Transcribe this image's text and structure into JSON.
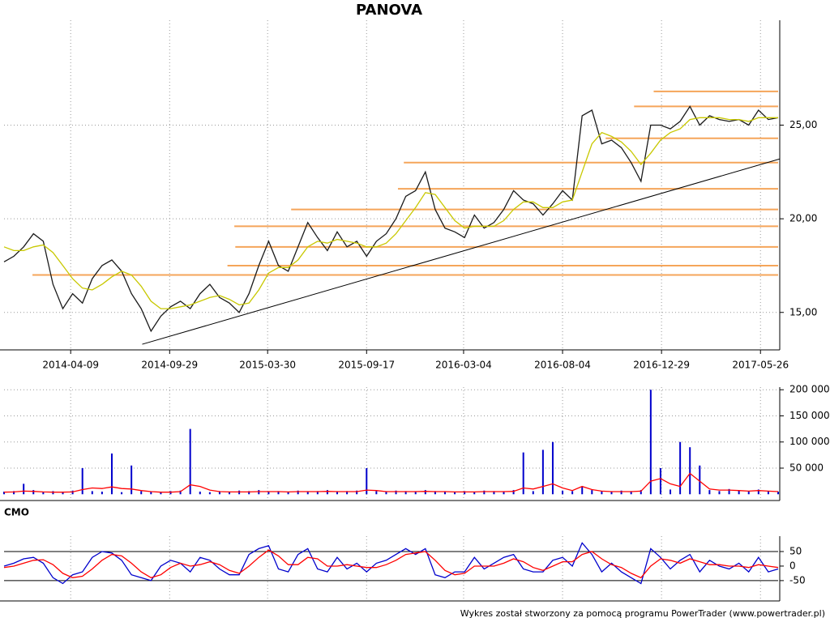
{
  "title": "PANOVA",
  "footer": "Wykres został stworzony za pomocą programu PowerTrader (www.powertrader.pl)",
  "chart_data": [
    {
      "type": "line",
      "xlim": [
        0,
        79
      ],
      "xticks": [
        {
          "value": 6.8,
          "label": "2014-04-09"
        },
        {
          "value": 16.9,
          "label": "2014-09-29"
        },
        {
          "value": 26.9,
          "label": "2015-03-30"
        },
        {
          "value": 37,
          "label": "2015-09-17"
        },
        {
          "value": 46.9,
          "label": "2016-03-04"
        },
        {
          "value": 57,
          "label": "2016-08-04"
        },
        {
          "value": 67.1,
          "label": "2016-12-29"
        },
        {
          "value": 77.2,
          "label": "2017-05-26"
        }
      ],
      "ylim": [
        13,
        30.6
      ],
      "yticks": [
        {
          "value": 15,
          "label": "15,00"
        },
        {
          "value": 20,
          "label": "20,00"
        },
        {
          "value": 25,
          "label": "25,00"
        }
      ],
      "grid": true,
      "series": [
        {
          "color": "#1a1a1a",
          "values": [
            17.7,
            18.0,
            18.5,
            19.2,
            18.8,
            16.5,
            15.2,
            16.0,
            15.5,
            16.8,
            17.5,
            17.8,
            17.2,
            16.0,
            15.2,
            14.0,
            14.8,
            15.3,
            15.6,
            15.2,
            16.0,
            16.5,
            15.8,
            15.5,
            15.0,
            16.0,
            17.5,
            18.8,
            17.5,
            17.2,
            18.5,
            19.8,
            19.0,
            18.3,
            19.3,
            18.5,
            18.8,
            18.0,
            18.8,
            19.2,
            20.0,
            21.2,
            21.5,
            22.5,
            20.5,
            19.5,
            19.3,
            19.0,
            20.2,
            19.5,
            19.8,
            20.5,
            21.5,
            21.0,
            20.8,
            20.2,
            20.8,
            21.5,
            21.0,
            25.5,
            25.8,
            24.0,
            24.2,
            23.8,
            23.0,
            22.0,
            25.0,
            25.0,
            24.8,
            25.2,
            26.0,
            25.0,
            25.5,
            25.3,
            25.2,
            25.3,
            25.0,
            25.8,
            25.3,
            25.4
          ]
        },
        {
          "color": "#c8c800",
          "values": [
            18.5,
            18.3,
            18.3,
            18.5,
            18.6,
            18.2,
            17.5,
            16.8,
            16.3,
            16.2,
            16.5,
            16.9,
            17.2,
            17.0,
            16.4,
            15.6,
            15.2,
            15.2,
            15.3,
            15.4,
            15.6,
            15.8,
            15.9,
            15.7,
            15.4,
            15.5,
            16.2,
            17.1,
            17.4,
            17.4,
            17.8,
            18.5,
            18.8,
            18.7,
            18.9,
            18.8,
            18.7,
            18.5,
            18.5,
            18.7,
            19.2,
            19.9,
            20.6,
            21.4,
            21.3,
            20.6,
            19.9,
            19.5,
            19.6,
            19.6,
            19.6,
            19.9,
            20.5,
            20.9,
            20.9,
            20.6,
            20.6,
            20.9,
            21.0,
            22.5,
            24.0,
            24.6,
            24.4,
            24.1,
            23.6,
            22.9,
            23.5,
            24.2,
            24.6,
            24.8,
            25.3,
            25.4,
            25.4,
            25.4,
            25.3,
            25.3,
            25.2,
            25.4,
            25.4,
            25.4
          ]
        }
      ],
      "levels_color": "#f5a55a",
      "levels": [
        {
          "value": 17.0,
          "from": 2.9
        },
        {
          "value": 17.5,
          "from": 22.8
        },
        {
          "value": 18.5,
          "from": 23.6
        },
        {
          "value": 19.6,
          "from": 23.5
        },
        {
          "value": 20.5,
          "from": 29.3
        },
        {
          "value": 21.6,
          "from": 40.2
        },
        {
          "value": 23.0,
          "from": 40.8
        },
        {
          "value": 24.3,
          "from": 61.4
        },
        {
          "value": 26.0,
          "from": 64.3
        },
        {
          "value": 26.8,
          "from": 66.3
        }
      ],
      "trendline": {
        "x": [
          14.1,
          79.2
        ],
        "values": [
          13.3,
          23.2
        ],
        "color": "#000000"
      }
    },
    {
      "type": "bar",
      "xlim": [
        0,
        79
      ],
      "ylim": [
        -12000,
        205000
      ],
      "yticks": [
        {
          "value": 50000,
          "label": "50 000"
        },
        {
          "value": 100000,
          "label": "100 000"
        },
        {
          "value": 150000,
          "label": "150 000"
        },
        {
          "value": 200000,
          "label": "200 000"
        }
      ],
      "grid": true,
      "series": [
        {
          "type": "bar",
          "color": "#0000cc",
          "values": [
            5000,
            6000,
            20000,
            8000,
            4000,
            6000,
            5000,
            7000,
            50000,
            6000,
            5000,
            78000,
            4000,
            55000,
            6000,
            5000,
            4000,
            6000,
            7000,
            125000,
            5000,
            4000,
            6000,
            5000,
            7000,
            6000,
            8000,
            5000,
            6000,
            4000,
            7000,
            5000,
            6000,
            8000,
            5000,
            6000,
            7000,
            50000,
            6000,
            5000,
            7000,
            6000,
            5000,
            8000,
            6000,
            5000,
            4000,
            6000,
            5000,
            7000,
            6000,
            5000,
            8000,
            80000,
            6000,
            85000,
            100000,
            7000,
            6000,
            15000,
            8000,
            6000,
            5000,
            7000,
            6000,
            8000,
            200000,
            50000,
            9000,
            100000,
            90000,
            55000,
            8000,
            6000,
            10000,
            7000,
            5000,
            9000,
            6000,
            5000
          ]
        },
        {
          "type": "line",
          "color": "#ff0000",
          "values": [
            4000,
            4500,
            6000,
            5500,
            4500,
            4000,
            4000,
            4500,
            9000,
            12000,
            11000,
            14000,
            11000,
            10000,
            7000,
            5000,
            4000,
            4000,
            5000,
            18000,
            15000,
            8000,
            5000,
            4500,
            4500,
            4500,
            5000,
            5000,
            5000,
            4500,
            5000,
            5000,
            5000,
            5500,
            5000,
            5000,
            5000,
            8000,
            7000,
            5000,
            5000,
            5000,
            5000,
            5500,
            5000,
            5000,
            4500,
            4500,
            4500,
            5000,
            5000,
            5000,
            5500,
            12000,
            10000,
            15000,
            20000,
            12000,
            7000,
            15000,
            9000,
            6000,
            5000,
            5000,
            5000,
            6000,
            25000,
            30000,
            20000,
            15000,
            40000,
            25000,
            10000,
            8000,
            8000,
            7000,
            6000,
            7000,
            6000,
            5000
          ]
        }
      ]
    },
    {
      "type": "line",
      "label": "CMO",
      "xlim": [
        0,
        79
      ],
      "ylim": [
        -120,
        103
      ],
      "yticks": [
        -50,
        0,
        50
      ],
      "hlines": [
        -50,
        50
      ],
      "series": [
        {
          "color": "#0000cc",
          "values": [
            0,
            10,
            25,
            30,
            10,
            -40,
            -60,
            -30,
            -20,
            30,
            50,
            45,
            20,
            -30,
            -40,
            -50,
            0,
            20,
            10,
            -20,
            30,
            20,
            -10,
            -30,
            -30,
            40,
            60,
            70,
            -10,
            -20,
            40,
            60,
            -10,
            -20,
            30,
            -10,
            10,
            -20,
            10,
            20,
            40,
            60,
            40,
            60,
            -30,
            -40,
            -20,
            -20,
            30,
            -10,
            10,
            30,
            40,
            -10,
            -20,
            -20,
            20,
            30,
            0,
            80,
            40,
            -20,
            10,
            -20,
            -40,
            -60,
            60,
            30,
            -10,
            20,
            40,
            -20,
            20,
            0,
            -10,
            10,
            -20,
            30,
            -20,
            -10
          ]
        },
        {
          "color": "#ff0000",
          "values": [
            -5,
            0,
            10,
            20,
            22,
            5,
            -25,
            -40,
            -35,
            -10,
            20,
            40,
            35,
            10,
            -20,
            -40,
            -30,
            -5,
            10,
            0,
            5,
            15,
            5,
            -15,
            -25,
            0,
            30,
            55,
            35,
            5,
            5,
            30,
            25,
            0,
            0,
            5,
            0,
            -5,
            -5,
            5,
            20,
            40,
            45,
            50,
            20,
            -15,
            -30,
            -25,
            0,
            0,
            0,
            10,
            25,
            15,
            -5,
            -15,
            0,
            15,
            15,
            40,
            50,
            25,
            5,
            -5,
            -25,
            -40,
            0,
            25,
            20,
            10,
            25,
            15,
            5,
            5,
            0,
            0,
            -5,
            5,
            0,
            -5
          ]
        }
      ]
    }
  ]
}
